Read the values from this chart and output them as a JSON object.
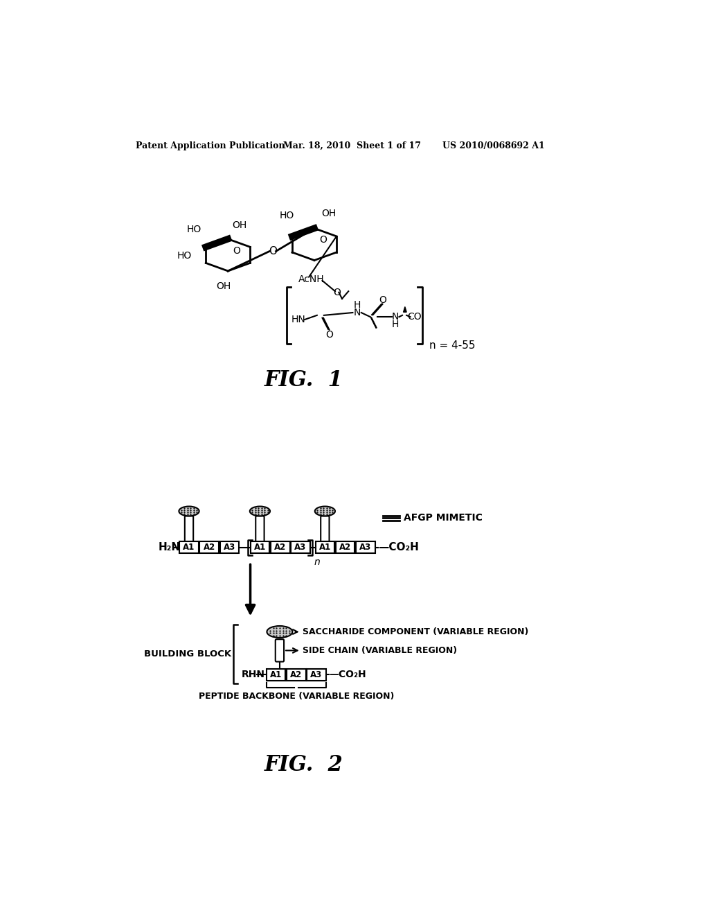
{
  "background_color": "#ffffff",
  "header_left": "Patent Application Publication",
  "header_center": "Mar. 18, 2010  Sheet 1 of 17",
  "header_right": "US 2010/0068692 A1",
  "fig1_label": "FIG.  1",
  "fig2_label": "FIG.  2",
  "n_label_fig1": "n = 4-55",
  "afgp_label": "AFGP MIMETIC",
  "saccharide_label": "SACCHARIDE COMPONENT (VARIABLE REGION)",
  "sidechain_label": "SIDE CHAIN (VARIABLE REGION)",
  "building_block_label": "BUILDING BLOCK",
  "peptide_backbone_label": "PEPTIDE BACKBONE (VARIABLE REGION)"
}
